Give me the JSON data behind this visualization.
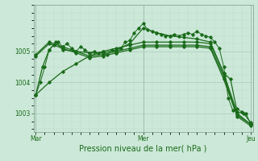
{
  "title": "Pression niveau de la mer( hPa )",
  "xlabel_ticks": [
    "Mar",
    "Mer",
    "Jeu"
  ],
  "xlabel_tick_positions": [
    0,
    48,
    96
  ],
  "ylim": [
    1002.4,
    1006.5
  ],
  "yticks": [
    1003,
    1004,
    1005
  ],
  "bg_color": "#cce8d8",
  "line_color": "#1a6b1a",
  "grid_color_major": "#aacaba",
  "grid_color_minor": "#bcd8c8",
  "total_points": 97,
  "lines": [
    {
      "x": [
        0,
        3,
        6,
        9,
        12,
        18,
        24,
        30,
        36,
        42,
        48,
        54,
        60,
        66,
        72,
        78,
        84,
        87,
        90,
        93,
        96
      ],
      "y": [
        1003.6,
        1004.5,
        1005.05,
        1005.3,
        1005.05,
        1005.0,
        1004.95,
        1004.95,
        1005.05,
        1005.25,
        1005.75,
        1005.6,
        1005.5,
        1005.45,
        1005.4,
        1005.3,
        1004.3,
        1004.1,
        1003.05,
        1003.0,
        1002.7
      ]
    },
    {
      "x": [
        0,
        6,
        12,
        18,
        24,
        30,
        36,
        42,
        48,
        54,
        60,
        66,
        72,
        78,
        84,
        90,
        96
      ],
      "y": [
        1004.9,
        1005.3,
        1005.15,
        1005.0,
        1004.85,
        1004.9,
        1005.0,
        1005.1,
        1005.2,
        1005.2,
        1005.2,
        1005.2,
        1005.2,
        1005.15,
        1004.2,
        1002.95,
        1002.65
      ]
    },
    {
      "x": [
        0,
        6,
        12,
        18,
        24,
        30,
        36,
        42,
        48,
        54,
        60,
        66,
        72,
        78,
        84,
        90,
        96
      ],
      "y": [
        1004.85,
        1005.25,
        1005.1,
        1004.95,
        1004.8,
        1004.85,
        1004.95,
        1005.05,
        1005.15,
        1005.15,
        1005.15,
        1005.15,
        1005.15,
        1005.1,
        1004.1,
        1002.9,
        1002.6
      ]
    },
    {
      "x": [
        0,
        2,
        4,
        6,
        8,
        10,
        12,
        14,
        16,
        18,
        20,
        22,
        24,
        26,
        28,
        30,
        32,
        34,
        36,
        38,
        40,
        42,
        44,
        46,
        48,
        50,
        52,
        54,
        56,
        58,
        60,
        62,
        64,
        66,
        68,
        70,
        72,
        74,
        76,
        78,
        80,
        82,
        84,
        86,
        88,
        90,
        92,
        94,
        96
      ],
      "y": [
        1003.6,
        1004.0,
        1004.5,
        1005.05,
        1005.2,
        1005.3,
        1005.15,
        1005.25,
        1005.1,
        1005.0,
        1005.15,
        1005.05,
        1004.95,
        1005.0,
        1004.95,
        1005.0,
        1004.9,
        1005.05,
        1004.95,
        1005.1,
        1005.3,
        1005.35,
        1005.6,
        1005.75,
        1005.9,
        1005.7,
        1005.65,
        1005.6,
        1005.55,
        1005.5,
        1005.5,
        1005.55,
        1005.5,
        1005.55,
        1005.6,
        1005.55,
        1005.65,
        1005.55,
        1005.5,
        1005.45,
        1005.3,
        1005.1,
        1004.5,
        1003.5,
        1003.1,
        1003.15,
        1003.05,
        1003.0,
        1002.65
      ]
    },
    {
      "x": [
        0,
        6,
        12,
        18,
        24,
        30,
        36,
        42,
        48,
        54,
        60,
        66,
        72,
        78,
        84,
        90,
        96
      ],
      "y": [
        1003.6,
        1004.0,
        1004.35,
        1004.6,
        1004.85,
        1005.0,
        1005.1,
        1005.2,
        1005.3,
        1005.3,
        1005.3,
        1005.3,
        1005.3,
        1005.25,
        1004.3,
        1003.0,
        1002.65
      ]
    }
  ]
}
